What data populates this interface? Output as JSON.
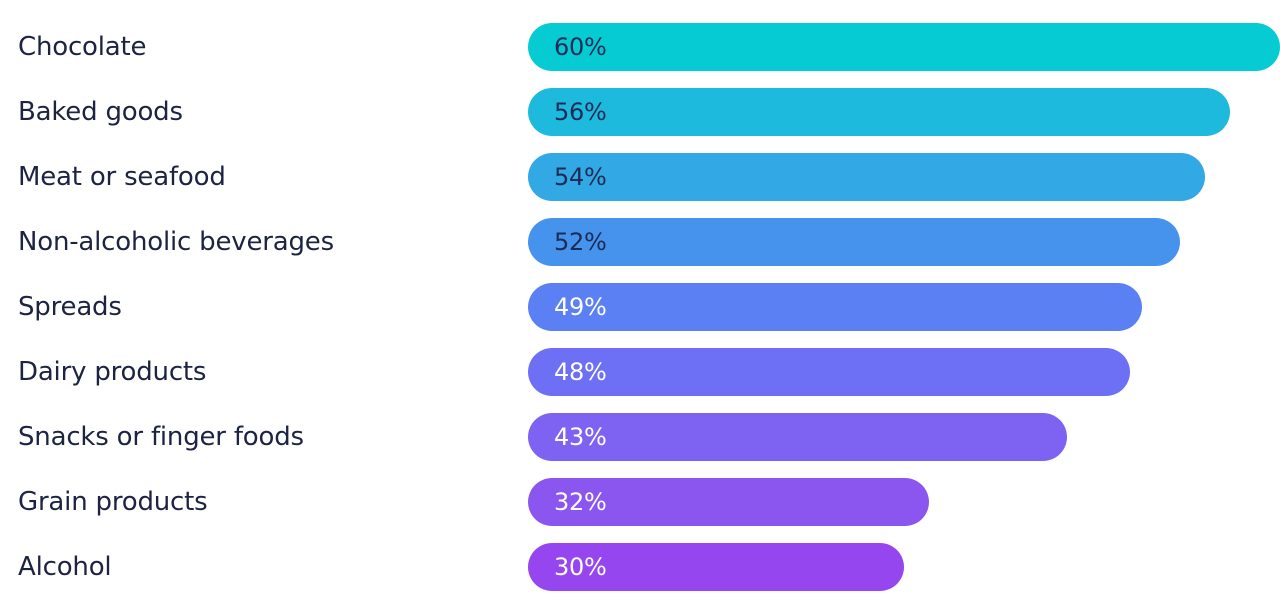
{
  "chart_data": {
    "type": "bar",
    "orientation": "horizontal",
    "categories": [
      "Chocolate",
      "Baked goods",
      "Meat or seafood",
      "Non-alcoholic beverages",
      "Spreads",
      "Dairy products",
      "Snacks or finger foods",
      "Grain products",
      "Alcohol"
    ],
    "values": [
      60,
      56,
      54,
      52,
      49,
      48,
      43,
      32,
      30
    ],
    "value_labels": [
      "60%",
      "56%",
      "54%",
      "52%",
      "49%",
      "48%",
      "43%",
      "32%",
      "30%"
    ],
    "unit": "%",
    "bar_colors": [
      "#06cbd3",
      "#1ebadd",
      "#32a8e4",
      "#4693ee",
      "#5a80f4",
      "#6d70f4",
      "#7e62f2",
      "#8b55ef",
      "#9546ef"
    ],
    "label_colors": [
      "#1d2b56",
      "#1d2b56",
      "#1d2b56",
      "#1d2b56",
      "#ffffff",
      "#ffffff",
      "#ffffff",
      "#ffffff",
      "#ffffff"
    ],
    "grid": false,
    "legend": "none"
  },
  "colors": {
    "category_text": "#1d2442",
    "background": "#ffffff"
  }
}
